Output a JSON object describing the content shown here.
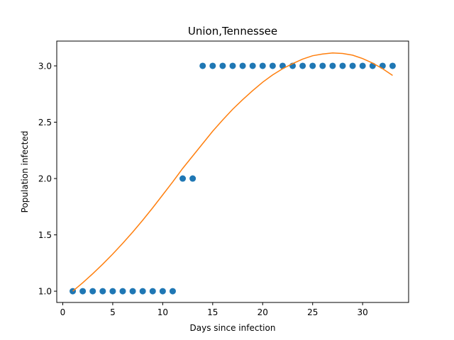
{
  "chart_data": {
    "type": "scatter",
    "title": "Union,Tennessee",
    "xlabel": "Days since infection",
    "ylabel": "Population infected",
    "xlim": [
      -0.6,
      34.6
    ],
    "ylim": [
      0.9,
      3.22
    ],
    "xticks": [
      0,
      5,
      10,
      15,
      20,
      25,
      30
    ],
    "yticks": [
      1.0,
      1.5,
      2.0,
      2.5,
      3.0
    ],
    "xtick_labels": [
      "0",
      "5",
      "10",
      "15",
      "20",
      "25",
      "30"
    ],
    "ytick_labels": [
      "1.0",
      "1.5",
      "2.0",
      "2.5",
      "3.0"
    ],
    "grid": false,
    "series": [
      {
        "kind": "scatter",
        "color": "#1f77b4",
        "x": [
          1,
          2,
          3,
          4,
          5,
          6,
          7,
          8,
          9,
          10,
          11,
          12,
          13,
          14,
          15,
          16,
          17,
          18,
          19,
          20,
          21,
          22,
          23,
          24,
          25,
          26,
          27,
          28,
          29,
          30,
          31,
          32,
          33
        ],
        "y": [
          1,
          1,
          1,
          1,
          1,
          1,
          1,
          1,
          1,
          1,
          1,
          2,
          2,
          3,
          3,
          3,
          3,
          3,
          3,
          3,
          3,
          3,
          3,
          3,
          3,
          3,
          3,
          3,
          3,
          3,
          3,
          3,
          3
        ]
      },
      {
        "kind": "line",
        "color": "#ff7f0e",
        "x": [
          1,
          2,
          3,
          4,
          5,
          6,
          7,
          8,
          9,
          10,
          11,
          12,
          13,
          14,
          15,
          16,
          17,
          18,
          19,
          20,
          21,
          22,
          23,
          24,
          25,
          26,
          27,
          28,
          29,
          30,
          31,
          32,
          33
        ],
        "y": [
          1.0,
          1.075,
          1.155,
          1.24,
          1.33,
          1.425,
          1.525,
          1.63,
          1.74,
          1.855,
          1.97,
          2.09,
          2.2,
          2.31,
          2.42,
          2.52,
          2.615,
          2.7,
          2.78,
          2.855,
          2.92,
          2.975,
          3.02,
          3.06,
          3.09,
          3.105,
          3.115,
          3.11,
          3.095,
          3.065,
          3.025,
          2.975,
          2.915
        ]
      }
    ]
  }
}
